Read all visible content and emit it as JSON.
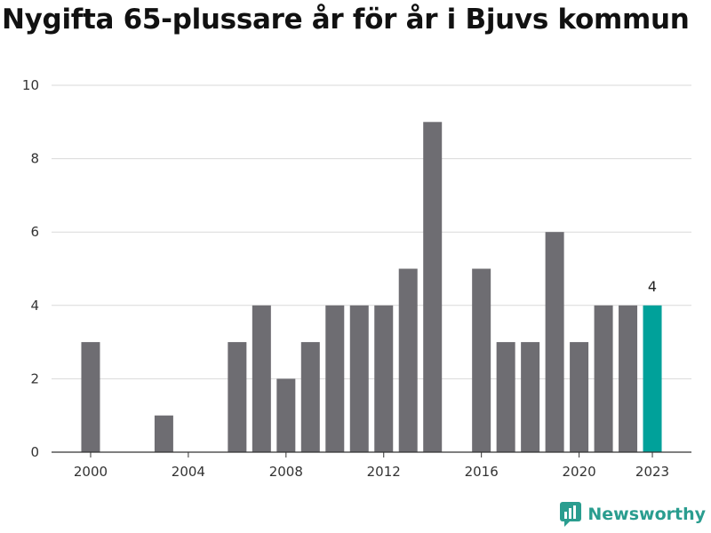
{
  "title": "Nygifta 65-plussare år för år i Bjuvs kommun",
  "brand": {
    "name": "Newsworthy",
    "icon": "newsworthy-logo-icon",
    "color": "#2a9d8f"
  },
  "colors": {
    "bar": "#6e6d72",
    "highlight": "#00a19a",
    "grid": "#d9d9d9",
    "axis": "#333333"
  },
  "chart_data": {
    "type": "bar",
    "title": "Nygifta 65-plussare år för år i Bjuvs kommun",
    "xlabel": "",
    "ylabel": "",
    "ylim": [
      0,
      10
    ],
    "yticks": [
      0,
      2,
      4,
      6,
      8,
      10
    ],
    "xticks": [
      2000,
      2004,
      2008,
      2012,
      2016,
      2020,
      2023
    ],
    "grid": true,
    "x": [
      2000,
      2001,
      2002,
      2003,
      2004,
      2005,
      2006,
      2007,
      2008,
      2009,
      2010,
      2011,
      2012,
      2013,
      2014,
      2015,
      2016,
      2017,
      2018,
      2019,
      2020,
      2021,
      2022,
      2023
    ],
    "values": [
      3,
      0,
      0,
      1,
      0,
      0,
      3,
      4,
      2,
      3,
      4,
      4,
      4,
      5,
      9,
      0,
      5,
      3,
      3,
      6,
      3,
      4,
      4,
      4
    ],
    "highlight": {
      "x": 2023,
      "label": "4"
    }
  }
}
